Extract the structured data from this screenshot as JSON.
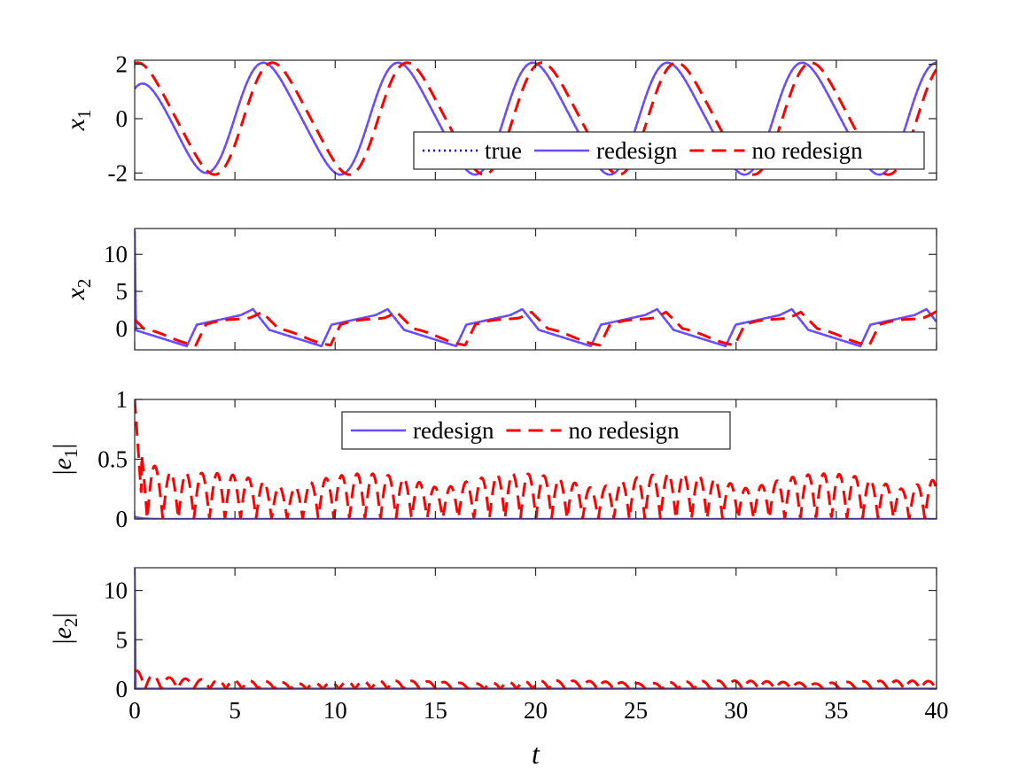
{
  "chart_data": [
    {
      "type": "line",
      "ylabel": "x1",
      "ylabel_base": "x",
      "ylabel_sub": "1",
      "ylabel_abs": false,
      "xlim": [
        0,
        40
      ],
      "ylim": [
        -2.25,
        2.15
      ],
      "yticks": [
        -2,
        0,
        2
      ],
      "ytick_labels": [
        "-2",
        "0",
        "2"
      ],
      "show_xtick_labels": false,
      "legend": {
        "position": "lower-right",
        "entries": [
          "true",
          "redesign",
          "no redesign"
        ]
      },
      "series": [
        {
          "name": "true",
          "style": "dotted",
          "color": "#0000ff",
          "fn": "x1_true"
        },
        {
          "name": "redesign",
          "style": "solid",
          "color": "#6a4cff",
          "fn": "x1_red"
        },
        {
          "name": "no redesign",
          "style": "dashed",
          "color": "#ff0000",
          "fn": "x1_nored"
        }
      ]
    },
    {
      "type": "line",
      "ylabel": "x2",
      "ylabel_base": "x",
      "ylabel_sub": "2",
      "ylabel_abs": false,
      "xlim": [
        0,
        40
      ],
      "ylim": [
        -2.9,
        13.5
      ],
      "yticks": [
        0,
        5,
        10
      ],
      "ytick_labels": [
        "0",
        "5",
        "10"
      ],
      "show_xtick_labels": false,
      "series": [
        {
          "name": "true",
          "style": "dotted",
          "color": "#0000ff",
          "fn": "x2_true"
        },
        {
          "name": "redesign",
          "style": "solid",
          "color": "#6a4cff",
          "fn": "x2_red"
        },
        {
          "name": "no redesign",
          "style": "dashed",
          "color": "#ff0000",
          "fn": "x2_nored"
        }
      ]
    },
    {
      "type": "line",
      "ylabel": "|e1|",
      "ylabel_base": "e",
      "ylabel_sub": "1",
      "ylabel_abs": true,
      "xlim": [
        0,
        40
      ],
      "ylim": [
        0,
        1
      ],
      "yticks": [
        0,
        0.5,
        1
      ],
      "ytick_labels": [
        "0",
        "0.5",
        "1"
      ],
      "show_xtick_labels": false,
      "legend": {
        "position": "top-center",
        "entries": [
          "redesign",
          "no redesign"
        ]
      },
      "series": [
        {
          "name": "redesign",
          "style": "solid",
          "color": "#6a4cff",
          "fn": "e1_red"
        },
        {
          "name": "no redesign",
          "style": "dashed",
          "color": "#ff0000",
          "fn": "e1_nored"
        }
      ]
    },
    {
      "type": "line",
      "ylabel": "|e2|",
      "ylabel_base": "e",
      "ylabel_sub": "2",
      "ylabel_abs": true,
      "xlim": [
        0,
        40
      ],
      "ylim": [
        0,
        12.3
      ],
      "yticks": [
        0,
        5,
        10
      ],
      "ytick_labels": [
        "0",
        "5",
        "10"
      ],
      "show_xtick_labels": true,
      "xticks": [
        0,
        5,
        10,
        15,
        20,
        25,
        30,
        35,
        40
      ],
      "xtick_labels": [
        "0",
        "5",
        "10",
        "15",
        "20",
        "25",
        "30",
        "35",
        "40"
      ],
      "xlabel": "t",
      "series": [
        {
          "name": "redesign",
          "style": "solid",
          "color": "#6a4cff",
          "fn": "e2_red"
        },
        {
          "name": "no redesign",
          "style": "dashed",
          "color": "#ff0000",
          "fn": "e2_nored"
        }
      ]
    }
  ]
}
